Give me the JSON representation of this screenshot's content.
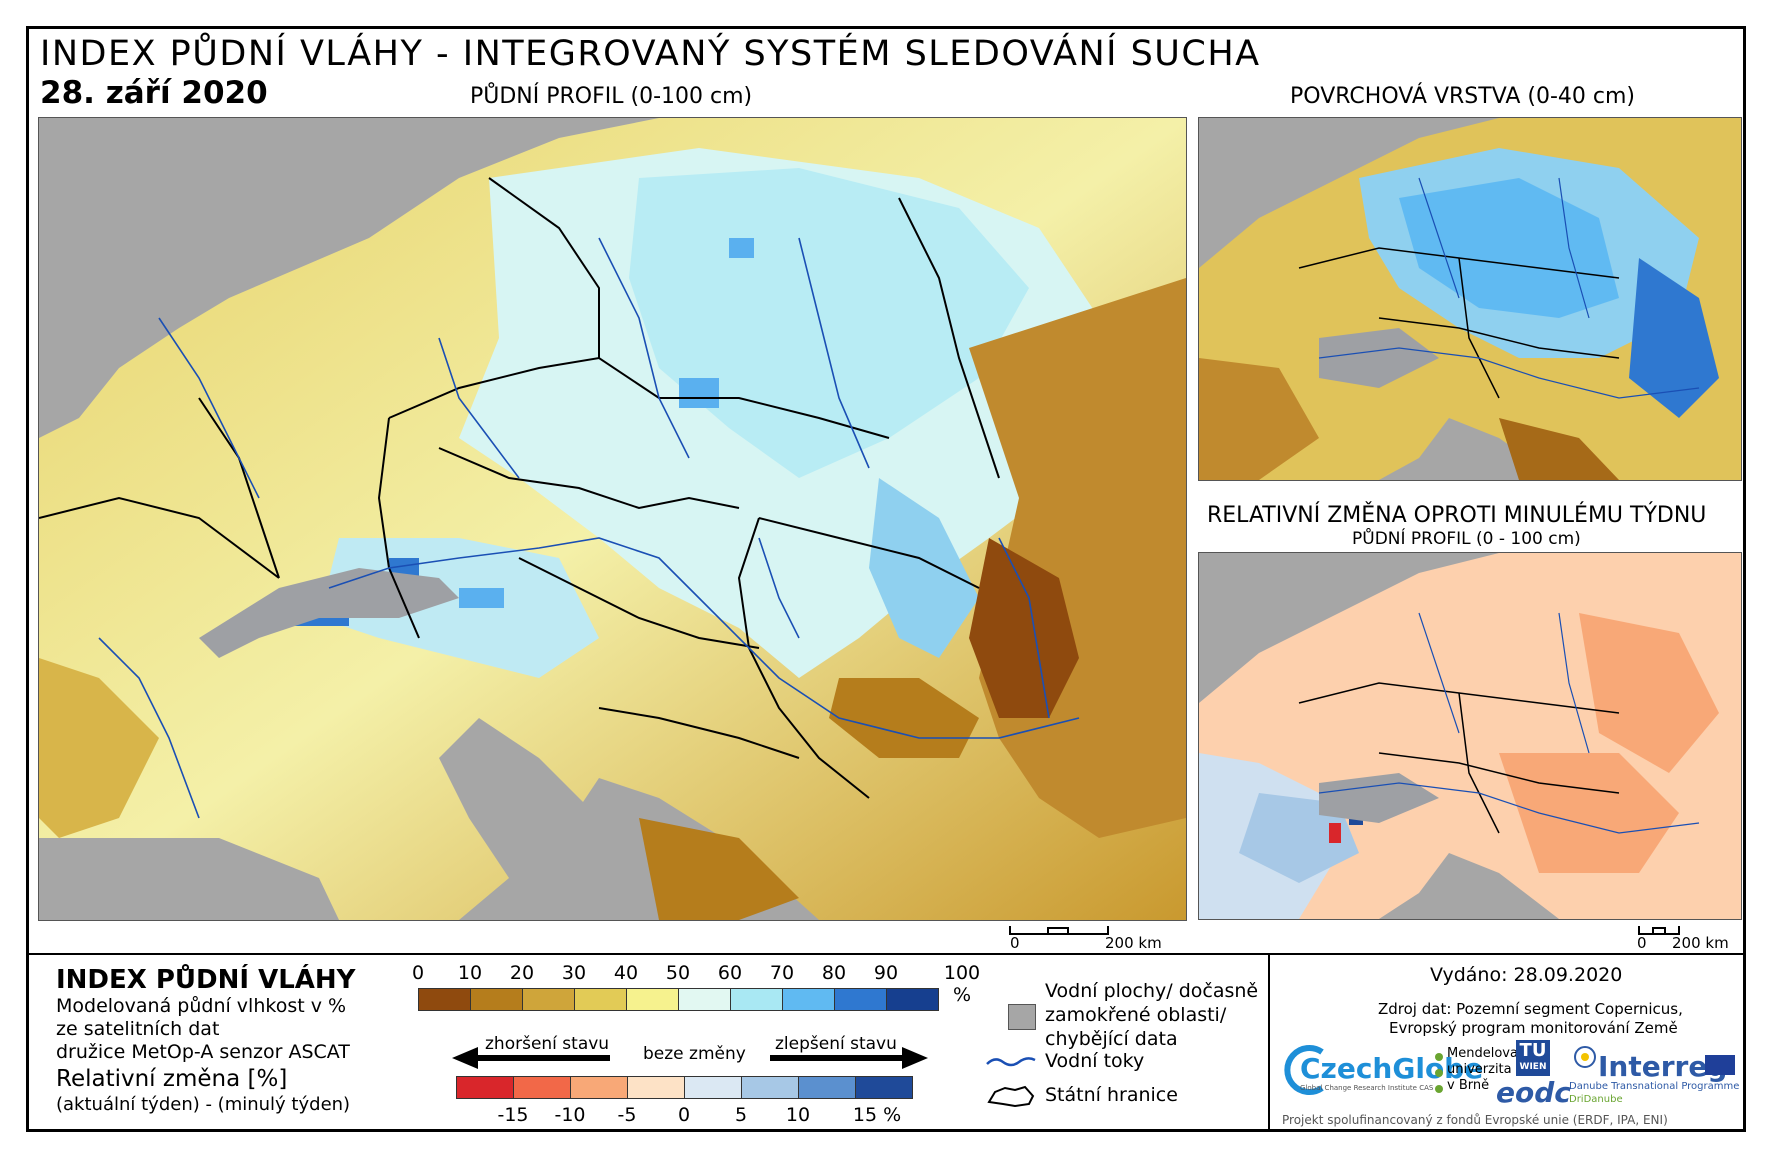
{
  "title": "INDEX PŮDNÍ VLÁHY - INTEGROVANÝ SYSTÉM SLEDOVÁNÍ SUCHA",
  "date": "28. září 2020",
  "maps": {
    "main_label": "PŮDNÍ PROFIL (0-100 cm)",
    "surface_label": "POVRCHOVÁ VRSTVA (0-40 cm)",
    "change_label": "RELATIVNÍ ZMĚNA OPROTI MINULÉMU TÝDNU",
    "change_sublabel": "PŮDNÍ PROFIL (0 - 100 cm)"
  },
  "scalebars": {
    "main": {
      "zero": "0",
      "end": "200 km"
    },
    "small": {
      "zero": "0",
      "end": "200 km"
    }
  },
  "legend": {
    "heading": "INDEX PŮDNÍ VLÁHY",
    "desc_line1": "Modelovaná půdní vlhkost v %",
    "desc_line2": "ze satelitních dat",
    "desc_line3": "družice MetOp-A senzor ASCAT",
    "change_heading": "Relativní změna [%]",
    "change_desc": "(aktuální týden) - (minulý týden)",
    "moisture_ticks": [
      "0",
      "10",
      "20",
      "30",
      "40",
      "50",
      "60",
      "70",
      "80",
      "90",
      "100 %"
    ],
    "moisture_colors": [
      "#8f4a0e",
      "#b57d1c",
      "#cfa53a",
      "#e2cb56",
      "#f6f28e",
      "#e2f8f2",
      "#a9e8f3",
      "#60baf2",
      "#2f78d0",
      "#163f8f"
    ],
    "worse_label": "zhoršení stavu",
    "nochange_label": "beze změny",
    "better_label": "zlepšení stavu",
    "change_ticks": [
      "-15",
      "-10",
      "-5",
      "0",
      "5",
      "10",
      "15 %"
    ],
    "change_colors": [
      "#d9262b",
      "#f26848",
      "#f8a877",
      "#fde2c6",
      "#dbe8f3",
      "#a7c8e6",
      "#5b90cf",
      "#1f4a99"
    ],
    "water_label_1": "Vodní plochy/ dočasně",
    "water_label_2": "zamokřené oblasti/",
    "water_label_3": "chybějící data",
    "rivers_label": "Vodní toky",
    "borders_label": "Státní hranice"
  },
  "info": {
    "issued": "Vydáno: 28.09.2020",
    "source_line1": "Zdroj dat: Pozemní segment Copernicus,",
    "source_line2": "Evropský program monitorování Země",
    "czechglobe": "CzechGlobe",
    "czechglobe_sub": "Global Change Research Institute CAS",
    "mendel_1": "Mendelova",
    "mendel_2": "univerzita",
    "mendel_3": "v Brně",
    "tu": "TU",
    "tu_sub": "WIEN",
    "eodc": "eodc",
    "interreg": "Interreg",
    "interreg_sub1": "Danube Transnational Programme",
    "interreg_sub2": "DriDanube",
    "funding": "Projekt spolufinancovaný z fondů Evropské unie (ERDF, IPA, ENI)"
  }
}
